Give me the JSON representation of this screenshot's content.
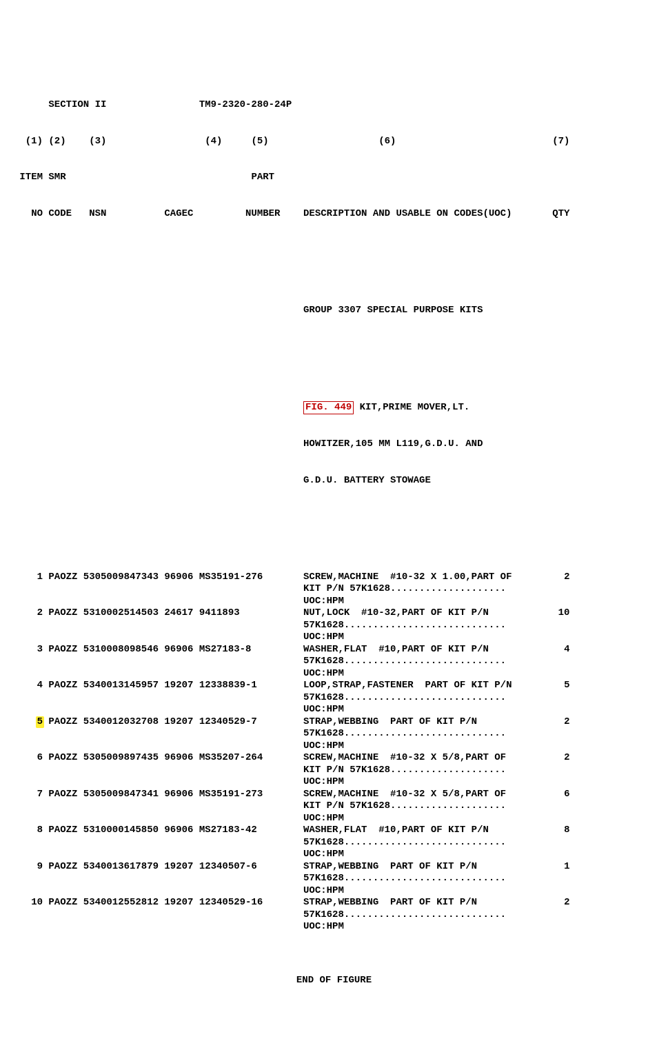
{
  "header": {
    "section_label": "SECTION II",
    "manual_number": "TM9-2320-280-24P",
    "col_nums": [
      "(1)",
      "(2)",
      "(3)",
      "(4)",
      "(5)",
      "(6)",
      "(7)"
    ],
    "labels_line1": {
      "item": "ITEM",
      "smr": "SMR",
      "part": "PART"
    },
    "labels_line2": {
      "no": "NO",
      "code": "CODE",
      "nsn": "NSN",
      "cagec": "CAGEC",
      "number": "NUMBER",
      "desc": "DESCRIPTION AND USABLE ON CODES(UOC)",
      "qty": "QTY"
    }
  },
  "group_line": "GROUP 3307 SPECIAL PURPOSE KITS",
  "fig_ref": "FIG. 449",
  "fig_desc_lines": [
    " KIT,PRIME MOVER,LT.",
    "HOWITZER,105 MM L119,G.D.U. AND",
    "G.D.U. BATTERY STOWAGE"
  ],
  "uoc_label": "UOC:HPM",
  "highlight_color": "#ffee33",
  "fig_border_color": "#c00000",
  "rows": [
    {
      "item": "1",
      "smr": "PAOZZ",
      "nsn": "5305009847343",
      "cage": "96906",
      "part": "MS35191-276",
      "qty": "2",
      "desc": [
        "SCREW,MACHINE  #10-32 X 1.00,PART OF",
        "KIT P/N 57K1628...................."
      ]
    },
    {
      "item": "2",
      "smr": "PAOZZ",
      "nsn": "5310002514503",
      "cage": "24617",
      "part": "9411893",
      "qty": "10",
      "desc": [
        "NUT,LOCK  #10-32,PART OF KIT P/N",
        "57K1628............................"
      ]
    },
    {
      "item": "3",
      "smr": "PAOZZ",
      "nsn": "5310008098546",
      "cage": "96906",
      "part": "MS27183-8",
      "qty": "4",
      "desc": [
        "WASHER,FLAT  #10,PART OF KIT P/N",
        "57K1628............................"
      ]
    },
    {
      "item": "4",
      "smr": "PAOZZ",
      "nsn": "5340013145957",
      "cage": "19207",
      "part": "12338839-1",
      "qty": "5",
      "desc": [
        "LOOP,STRAP,FASTENER  PART OF KIT P/N",
        "57K1628............................"
      ]
    },
    {
      "item": "5",
      "smr": "PAOZZ",
      "nsn": "5340012032708",
      "cage": "19207",
      "part": "12340529-7",
      "qty": "2",
      "highlight": true,
      "desc": [
        "STRAP,WEBBING  PART OF KIT P/N",
        "57K1628............................"
      ]
    },
    {
      "item": "6",
      "smr": "PAOZZ",
      "nsn": "5305009897435",
      "cage": "96906",
      "part": "MS35207-264",
      "qty": "2",
      "desc": [
        "SCREW,MACHINE  #10-32 X 5/8,PART OF",
        "KIT P/N 57K1628...................."
      ]
    },
    {
      "item": "7",
      "smr": "PAOZZ",
      "nsn": "5305009847341",
      "cage": "96906",
      "part": "MS35191-273",
      "qty": "6",
      "desc": [
        "SCREW,MACHINE  #10-32 X 5/8,PART OF",
        "KIT P/N 57K1628...................."
      ]
    },
    {
      "item": "8",
      "smr": "PAOZZ",
      "nsn": "5310000145850",
      "cage": "96906",
      "part": "MS27183-42",
      "qty": "8",
      "desc": [
        "WASHER,FLAT  #10,PART OF KIT P/N",
        "57K1628............................"
      ]
    },
    {
      "item": "9",
      "smr": "PAOZZ",
      "nsn": "5340013617879",
      "cage": "19207",
      "part": "12340507-6",
      "qty": "1",
      "desc": [
        "STRAP,WEBBING  PART OF KIT P/N",
        "57K1628............................"
      ]
    },
    {
      "item": "10",
      "smr": "PAOZZ",
      "nsn": "5340012552812",
      "cage": "19207",
      "part": "12340529-16",
      "qty": "2",
      "desc": [
        "STRAP,WEBBING  PART OF KIT P/N",
        "57K1628............................"
      ]
    }
  ],
  "footer": "END OF FIGURE"
}
